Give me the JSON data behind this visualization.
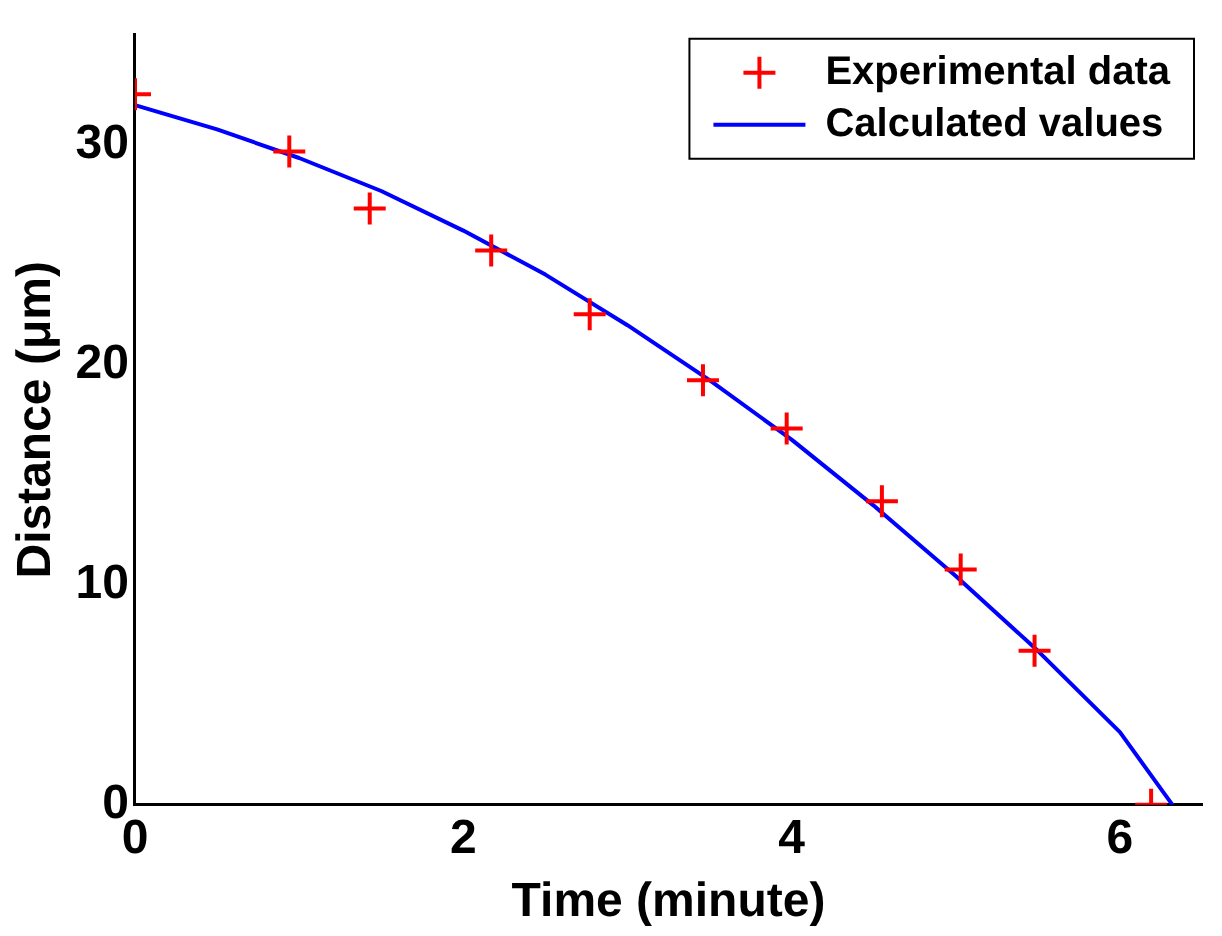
{
  "chart_data": {
    "type": "scatter",
    "xlabel": "Time (minute)",
    "ylabel": "Distance (μm)",
    "xlim": [
      0,
      6.5
    ],
    "ylim": [
      0,
      35
    ],
    "xticks": [
      0,
      2,
      4,
      6
    ],
    "yticks": [
      0,
      10,
      20,
      30
    ],
    "grid": false,
    "legend": "top right",
    "series": [
      {
        "name": "Experimental data",
        "color": "#ff0000",
        "marker": "cross",
        "x": [
          0,
          0.94,
          1.43,
          2.17,
          2.77,
          3.46,
          3.97,
          4.55,
          5.03,
          5.48,
          6.19
        ],
        "values": [
          32.3,
          29.7,
          27.1,
          25.2,
          22.3,
          19.3,
          17.1,
          13.8,
          10.7,
          7.0,
          0
        ]
      },
      {
        "name": "Calculated values",
        "type": "line",
        "color": "#0000ff",
        "marker": "none",
        "line_style": "solid",
        "x": [
          0,
          0.5,
          1,
          1.5,
          2,
          2.5,
          3,
          3.5,
          4,
          4.5,
          5,
          5.5,
          6,
          6.32
        ],
        "values": [
          31.8,
          30.7,
          29.4,
          27.9,
          26.1,
          24.1,
          21.8,
          19.3,
          16.6,
          13.6,
          10.4,
          7.0,
          3.3,
          0
        ]
      }
    ]
  }
}
